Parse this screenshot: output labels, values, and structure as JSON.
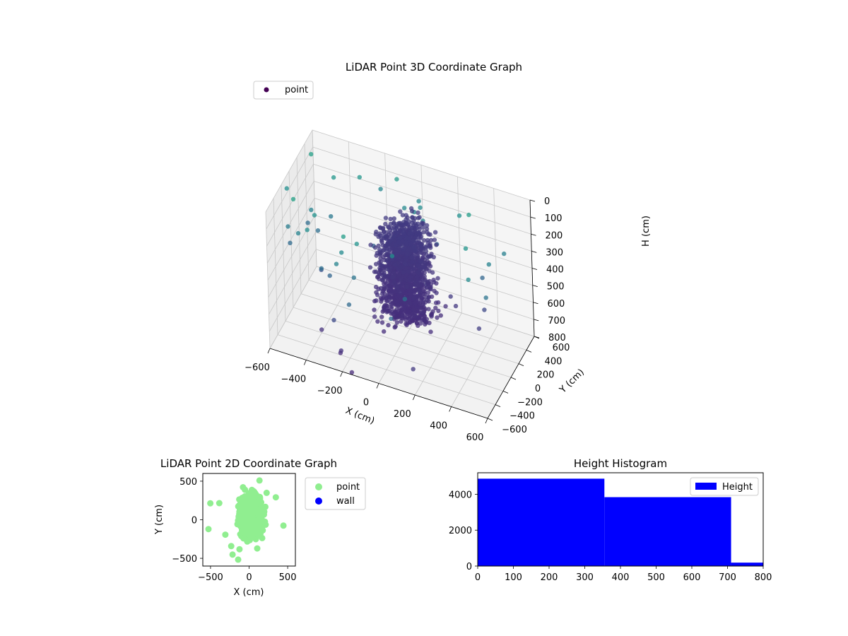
{
  "figure": {
    "title_3d": "LiDAR Point 3D Coordinate Graph",
    "title_2d": "LiDAR Point 2D Coordinate Graph",
    "title_hist": "Height Histogram"
  },
  "chart_data": [
    {
      "type": "scatter",
      "id": "scatter3d",
      "title": "LiDAR Point 3D Coordinate Graph",
      "xlabel": "X (cm)",
      "ylabel": "Y (cm)",
      "zlabel": "H (cm)",
      "xlim": [
        -600,
        600
      ],
      "ylim": [
        -600,
        600
      ],
      "zlim": [
        800,
        0
      ],
      "x_ticks": [
        "−600",
        "−400",
        "−200",
        "0",
        "200",
        "400",
        "600"
      ],
      "y_ticks": [
        "−600",
        "−400",
        "−200",
        "0",
        "200",
        "400",
        "600"
      ],
      "z_ticks": [
        "0",
        "100",
        "200",
        "300",
        "400",
        "500",
        "600",
        "700",
        "800"
      ],
      "legend": [
        "point"
      ],
      "legend_position": "top-left",
      "colormap": "viridis (by height)",
      "series": [
        {
          "name": "point",
          "description_note": "dense cluster of several thousand points centred near x≈-100..200, y≈-300..400, h≈150..650, plus a sparse outer ring of points",
          "cluster_bounds": {
            "x": [
              -200,
              300
            ],
            "y": [
              -350,
              450
            ],
            "h": [
              100,
              700
            ]
          }
        }
      ],
      "grid": true
    },
    {
      "type": "scatter",
      "id": "scatter2d",
      "title": "LiDAR Point 2D Coordinate Graph",
      "xlabel": "X (cm)",
      "ylabel": "Y (cm)",
      "xlim": [
        -600,
        600
      ],
      "ylim": [
        -600,
        600
      ],
      "x_ticks": [
        "−500",
        "0",
        "500"
      ],
      "y_ticks": [
        "500",
        "0",
        "−500"
      ],
      "legend": [
        "point",
        "wall"
      ],
      "legend_position": "outside-right",
      "colors": {
        "point": "#90ee90",
        "wall": "#0000ff"
      },
      "series": [
        {
          "name": "point",
          "cluster_bounds": {
            "x": [
              -200,
              300
            ],
            "y": [
              -500,
              500
            ]
          }
        },
        {
          "name": "wall",
          "x": [],
          "y": []
        }
      ]
    },
    {
      "type": "bar",
      "id": "histogram",
      "title": "Height Histogram",
      "legend": [
        "Height"
      ],
      "legend_position": "top-right",
      "color": "#0000ff",
      "xlim": [
        0,
        800
      ],
      "ylim": [
        0,
        5200
      ],
      "x_ticks": [
        "0",
        "100",
        "200",
        "300",
        "400",
        "500",
        "600",
        "700",
        "800"
      ],
      "y_ticks": [
        "0",
        "2000",
        "4000"
      ],
      "bins": [
        {
          "start": 0,
          "end": 355,
          "count": 4870
        },
        {
          "start": 355,
          "end": 710,
          "count": 3840
        },
        {
          "start": 710,
          "end": 800,
          "count": 190
        }
      ]
    }
  ]
}
